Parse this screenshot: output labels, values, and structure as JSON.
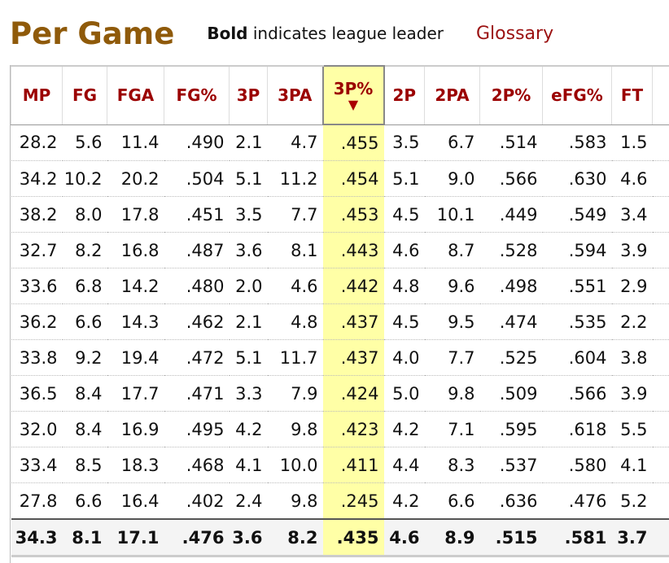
{
  "header": {
    "title": "Per Game",
    "note_bold": "Bold",
    "note_rest": "indicates league leader",
    "glossary": "Glossary"
  },
  "table": {
    "columns": [
      "MP",
      "FG",
      "FGA",
      "FG%",
      "3P",
      "3PA",
      "3P%",
      "2P",
      "2PA",
      "2P%",
      "eFG%",
      "FT"
    ],
    "rows": [
      [
        "28.2",
        "5.6",
        "11.4",
        ".490",
        "2.1",
        "4.7",
        ".455",
        "3.5",
        "6.7",
        ".514",
        ".583",
        "1.5"
      ],
      [
        "34.2",
        "10.2",
        "20.2",
        ".504",
        "5.1",
        "11.2",
        ".454",
        "5.1",
        "9.0",
        ".566",
        ".630",
        "4.6"
      ],
      [
        "38.2",
        "8.0",
        "17.8",
        ".451",
        "3.5",
        "7.7",
        ".453",
        "4.5",
        "10.1",
        ".449",
        ".549",
        "3.4"
      ],
      [
        "32.7",
        "8.2",
        "16.8",
        ".487",
        "3.6",
        "8.1",
        ".443",
        "4.6",
        "8.7",
        ".528",
        ".594",
        "3.9"
      ],
      [
        "33.6",
        "6.8",
        "14.2",
        ".480",
        "2.0",
        "4.6",
        ".442",
        "4.8",
        "9.6",
        ".498",
        ".551",
        "2.9"
      ],
      [
        "36.2",
        "6.6",
        "14.3",
        ".462",
        "2.1",
        "4.8",
        ".437",
        "4.5",
        "9.5",
        ".474",
        ".535",
        "2.2"
      ],
      [
        "33.8",
        "9.2",
        "19.4",
        ".472",
        "5.1",
        "11.7",
        ".437",
        "4.0",
        "7.7",
        ".525",
        ".604",
        "3.8"
      ],
      [
        "36.5",
        "8.4",
        "17.7",
        ".471",
        "3.3",
        "7.9",
        ".424",
        "5.0",
        "9.8",
        ".509",
        ".566",
        "3.9"
      ],
      [
        "32.0",
        "8.4",
        "16.9",
        ".495",
        "4.2",
        "9.8",
        ".423",
        "4.2",
        "7.1",
        ".595",
        ".618",
        "5.5"
      ],
      [
        "33.4",
        "8.5",
        "18.3",
        ".468",
        "4.1",
        "10.0",
        ".411",
        "4.4",
        "8.3",
        ".537",
        ".580",
        "4.1"
      ],
      [
        "27.8",
        "6.6",
        "16.4",
        ".402",
        "2.4",
        "9.8",
        ".245",
        "4.2",
        "6.6",
        ".636",
        ".476",
        "5.2"
      ]
    ],
    "total": [
      "34.3",
      "8.1",
      "17.1",
      ".476",
      "3.6",
      "8.2",
      ".435",
      "4.6",
      "8.9",
      ".515",
      ".581",
      "3.7"
    ]
  }
}
